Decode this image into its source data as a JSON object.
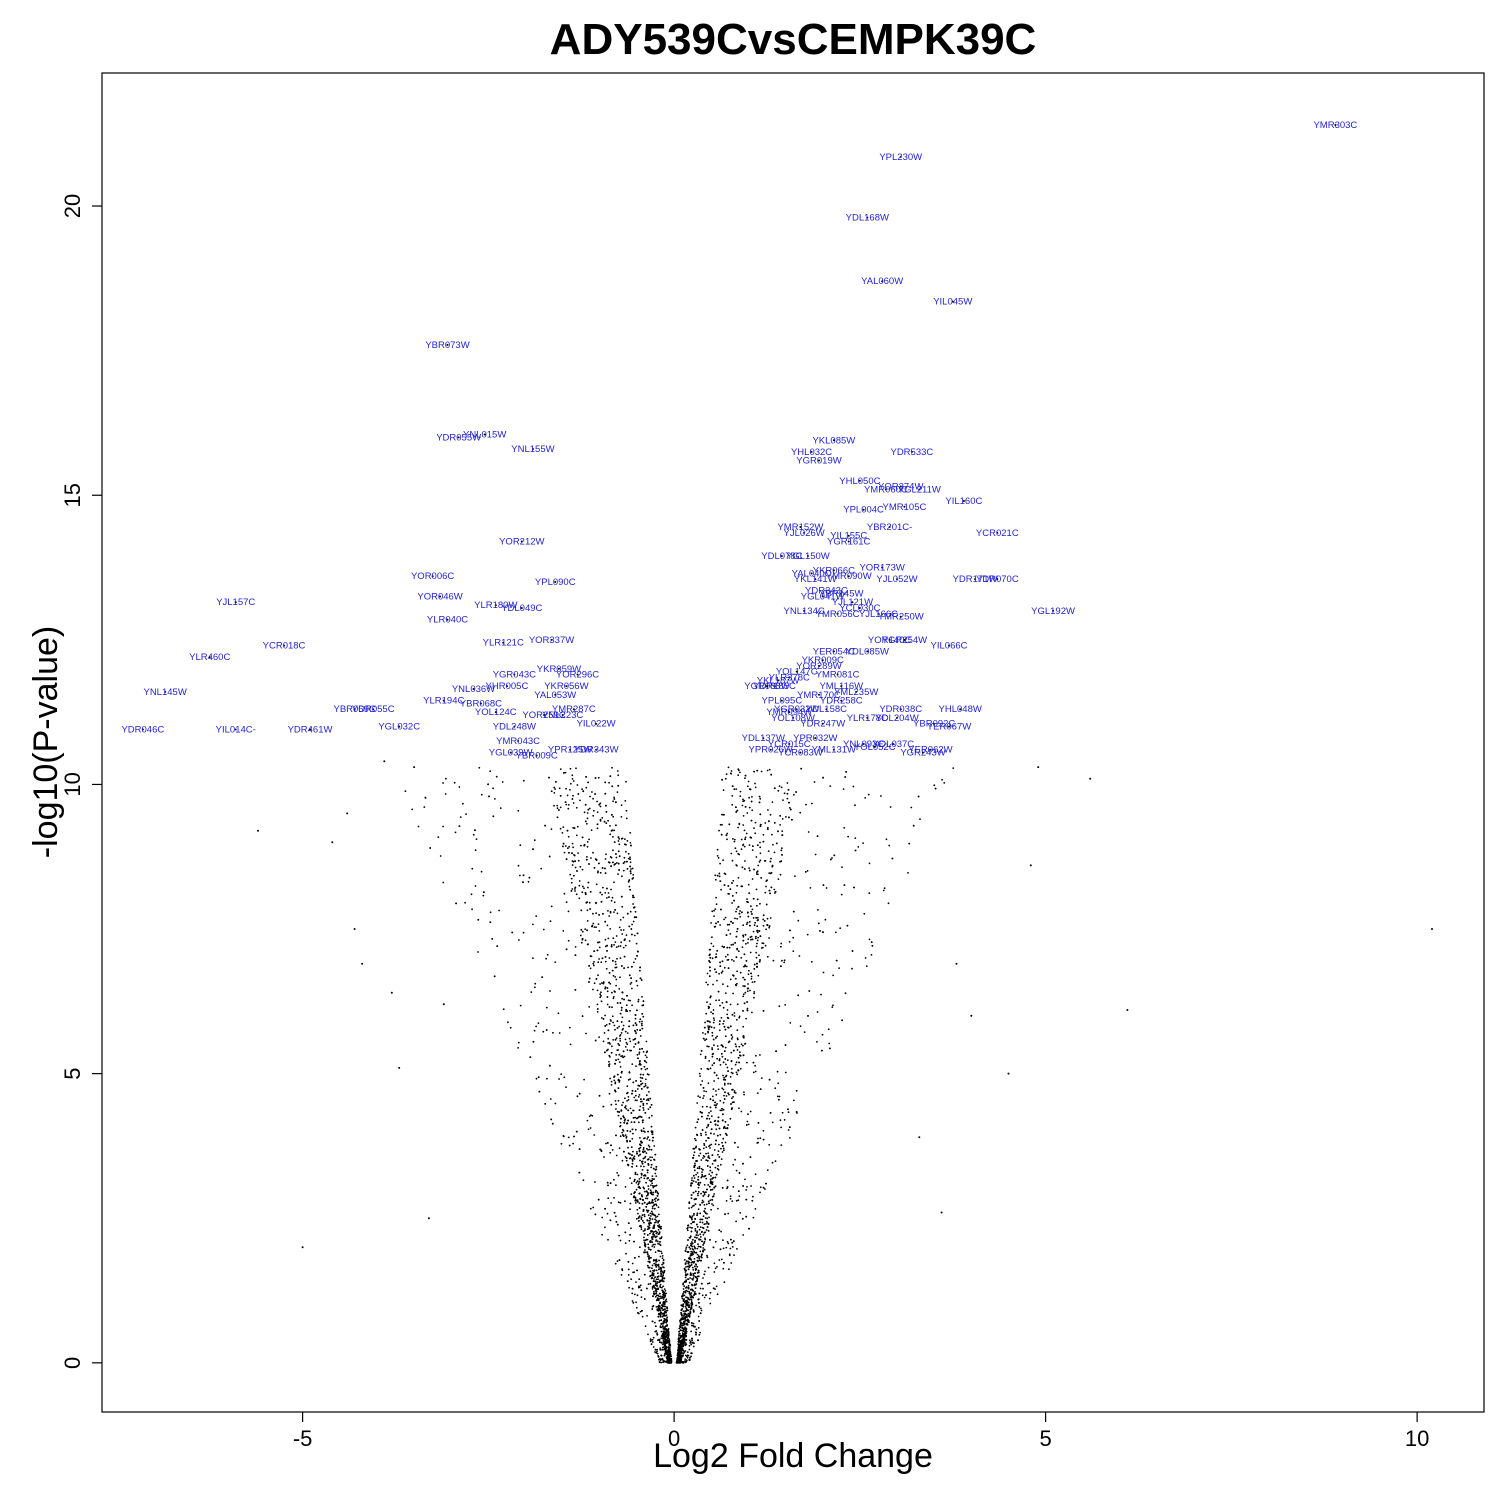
{
  "chart_data": {
    "type": "scatter",
    "title": "ADY539CvsCEMPK39C",
    "xlabel": "Log2 Fold Change",
    "ylabel": "-log10(P-value)",
    "xlim": [
      -7.7,
      10.9
    ],
    "ylim": [
      -0.85,
      22.3
    ],
    "x_ticks": [
      -5,
      0,
      5,
      10
    ],
    "y_ticks": [
      0,
      5,
      10,
      15,
      20
    ],
    "grid": false,
    "point_color": "#000000",
    "label_color": "#1f1fd0",
    "labeled_points": [
      {
        "gene": "YMR303C",
        "x": 8.9,
        "y": 21.4
      },
      {
        "gene": "YPL230W",
        "x": 3.05,
        "y": 20.85
      },
      {
        "gene": "YDL168W",
        "x": 2.6,
        "y": 19.8
      },
      {
        "gene": "YAL060W",
        "x": 2.8,
        "y": 18.7
      },
      {
        "gene": "YIL045W",
        "x": 3.75,
        "y": 18.35
      },
      {
        "gene": "YBR073W",
        "x": -3.05,
        "y": 17.6
      },
      {
        "gene": "YNL015W",
        "x": -2.55,
        "y": 16.05
      },
      {
        "gene": "YDR055W",
        "x": -2.9,
        "y": 16.0
      },
      {
        "gene": "YNL155W",
        "x": -1.9,
        "y": 15.8
      },
      {
        "gene": "YKL085W",
        "x": 2.15,
        "y": 15.95
      },
      {
        "gene": "YHL032C",
        "x": 1.85,
        "y": 15.75
      },
      {
        "gene": "YDR533C",
        "x": 3.2,
        "y": 15.75
      },
      {
        "gene": "YGR019W",
        "x": 1.95,
        "y": 15.6
      },
      {
        "gene": "YHL050C",
        "x": 2.5,
        "y": 15.25
      },
      {
        "gene": "YOR374W",
        "x": 3.05,
        "y": 15.15
      },
      {
        "gene": "YMR060C",
        "x": 2.85,
        "y": 15.1
      },
      {
        "gene": "YGL211W",
        "x": 3.3,
        "y": 15.1
      },
      {
        "gene": "YIL160C",
        "x": 3.9,
        "y": 14.9
      },
      {
        "gene": "YMR105C",
        "x": 3.1,
        "y": 14.8
      },
      {
        "gene": "YPL004C",
        "x": 2.55,
        "y": 14.75
      },
      {
        "gene": "YBR201C-",
        "x": 2.9,
        "y": 14.45
      },
      {
        "gene": "YCR021C",
        "x": 4.35,
        "y": 14.35
      },
      {
        "gene": "YMR152W",
        "x": 1.7,
        "y": 14.45
      },
      {
        "gene": "YJL026W",
        "x": 1.75,
        "y": 14.35
      },
      {
        "gene": "YIL155C",
        "x": 2.35,
        "y": 14.3
      },
      {
        "gene": "YGR161C",
        "x": 2.35,
        "y": 14.2
      },
      {
        "gene": "YOR212W",
        "x": -2.05,
        "y": 14.2
      },
      {
        "gene": "YDL078C",
        "x": 1.45,
        "y": 13.95
      },
      {
        "gene": "YGL150W",
        "x": 1.8,
        "y": 13.95
      },
      {
        "gene": "YOR173W",
        "x": 2.8,
        "y": 13.75
      },
      {
        "gene": "YKR066C",
        "x": 2.15,
        "y": 13.7
      },
      {
        "gene": "YAL040C",
        "x": 1.85,
        "y": 13.65
      },
      {
        "gene": "YMR090W",
        "x": 2.35,
        "y": 13.6
      },
      {
        "gene": "YJL052W",
        "x": 3.0,
        "y": 13.55
      },
      {
        "gene": "YDR171W",
        "x": 4.05,
        "y": 13.55
      },
      {
        "gene": "YDR070C",
        "x": 4.35,
        "y": 13.55
      },
      {
        "gene": "YKL141W",
        "x": 1.9,
        "y": 13.55
      },
      {
        "gene": "YOR006C",
        "x": -3.25,
        "y": 13.6
      },
      {
        "gene": "YPL090C",
        "x": -1.6,
        "y": 13.5
      },
      {
        "gene": "YDR343C",
        "x": 2.05,
        "y": 13.35
      },
      {
        "gene": "YBR145W",
        "x": 2.25,
        "y": 13.3
      },
      {
        "gene": "YGL041W",
        "x": 2.0,
        "y": 13.25
      },
      {
        "gene": "YOR046W",
        "x": -3.15,
        "y": 13.25
      },
      {
        "gene": "YJL157C",
        "x": -5.9,
        "y": 13.15
      },
      {
        "gene": "YLR180W",
        "x": -2.4,
        "y": 13.1
      },
      {
        "gene": "YDL049C",
        "x": -2.05,
        "y": 13.05
      },
      {
        "gene": "YJL121W",
        "x": 2.4,
        "y": 13.15
      },
      {
        "gene": "YCL030C",
        "x": 2.5,
        "y": 13.05
      },
      {
        "gene": "YJL166C",
        "x": 2.75,
        "y": 12.95
      },
      {
        "gene": "YNL134C",
        "x": 1.75,
        "y": 13.0
      },
      {
        "gene": "YMR056C",
        "x": 2.2,
        "y": 12.95
      },
      {
        "gene": "YMR250W",
        "x": 3.05,
        "y": 12.9
      },
      {
        "gene": "YGL192W",
        "x": 5.1,
        "y": 13.0
      },
      {
        "gene": "YLR040C",
        "x": -3.05,
        "y": 12.85
      },
      {
        "gene": "YOR337W",
        "x": -1.65,
        "y": 12.5
      },
      {
        "gene": "YLR121C",
        "x": -2.3,
        "y": 12.45
      },
      {
        "gene": "YCR018C",
        "x": -5.25,
        "y": 12.4
      },
      {
        "gene": "YOR140C",
        "x": 2.9,
        "y": 12.5
      },
      {
        "gene": "YGR254W",
        "x": 3.1,
        "y": 12.5
      },
      {
        "gene": "YIL066C",
        "x": 3.7,
        "y": 12.4
      },
      {
        "gene": "YER054C",
        "x": 2.15,
        "y": 12.3
      },
      {
        "gene": "YDL085W",
        "x": 2.6,
        "y": 12.3
      },
      {
        "gene": "YLR460C",
        "x": -6.25,
        "y": 12.2
      },
      {
        "gene": "YKR009C",
        "x": 2.0,
        "y": 12.15
      },
      {
        "gene": "YOR289W",
        "x": 1.95,
        "y": 12.05
      },
      {
        "gene": "YKR059W",
        "x": -1.55,
        "y": 12.0
      },
      {
        "gene": "YOR296C",
        "x": -1.3,
        "y": 11.9
      },
      {
        "gene": "YGR043C",
        "x": -2.15,
        "y": 11.9
      },
      {
        "gene": "YMR081C",
        "x": 2.2,
        "y": 11.9
      },
      {
        "gene": "YOL147C",
        "x": 1.65,
        "y": 11.95
      },
      {
        "gene": "YLR378C",
        "x": 1.55,
        "y": 11.85
      },
      {
        "gene": "YKL187W",
        "x": 1.4,
        "y": 11.8
      },
      {
        "gene": "YHR005C",
        "x": -2.25,
        "y": 11.7
      },
      {
        "gene": "YKR056W",
        "x": -1.45,
        "y": 11.7
      },
      {
        "gene": "YDR185C",
        "x": 1.35,
        "y": 11.7
      },
      {
        "gene": "YGR088W",
        "x": 1.25,
        "y": 11.7
      },
      {
        "gene": "YML116W",
        "x": 2.25,
        "y": 11.7
      },
      {
        "gene": "YNL036W",
        "x": -2.7,
        "y": 11.65
      },
      {
        "gene": "YNL145W",
        "x": -6.85,
        "y": 11.6
      },
      {
        "gene": "YAL053W",
        "x": -1.6,
        "y": 11.55
      },
      {
        "gene": "YMR170C",
        "x": 1.95,
        "y": 11.55
      },
      {
        "gene": "YML235W",
        "x": 2.45,
        "y": 11.6
      },
      {
        "gene": "YLR194C",
        "x": -3.1,
        "y": 11.45
      },
      {
        "gene": "YPL095C",
        "x": 1.45,
        "y": 11.45
      },
      {
        "gene": "YDR258C",
        "x": 2.25,
        "y": 11.45
      },
      {
        "gene": "YBR068C",
        "x": -2.6,
        "y": 11.4
      },
      {
        "gene": "YBR069C",
        "x": -4.3,
        "y": 11.3
      },
      {
        "gene": "YDR055C",
        "x": -4.05,
        "y": 11.3
      },
      {
        "gene": "YMR287C",
        "x": -1.35,
        "y": 11.3
      },
      {
        "gene": "YDR038C",
        "x": 3.05,
        "y": 11.3
      },
      {
        "gene": "YHL048W",
        "x": 3.85,
        "y": 11.3
      },
      {
        "gene": "YOL124C",
        "x": -2.4,
        "y": 11.25
      },
      {
        "gene": "YOR259C",
        "x": -1.75,
        "y": 11.2
      },
      {
        "gene": "YNL223C",
        "x": -1.5,
        "y": 11.2
      },
      {
        "gene": "YGR032W",
        "x": 1.65,
        "y": 11.3
      },
      {
        "gene": "YDL158C",
        "x": 2.05,
        "y": 11.3
      },
      {
        "gene": "YMR094W",
        "x": 1.55,
        "y": 11.25
      },
      {
        "gene": "YLR178C",
        "x": 2.6,
        "y": 11.15
      },
      {
        "gene": "YDL204W",
        "x": 3.0,
        "y": 11.15
      },
      {
        "gene": "YOL108W",
        "x": 1.6,
        "y": 11.15
      },
      {
        "gene": "YIL022W",
        "x": -1.05,
        "y": 11.05
      },
      {
        "gene": "YDR247W",
        "x": 2.0,
        "y": 11.05
      },
      {
        "gene": "YDL248W",
        "x": -2.15,
        "y": 11.0
      },
      {
        "gene": "YBR092C",
        "x": 3.5,
        "y": 11.05
      },
      {
        "gene": "YER067W",
        "x": 3.7,
        "y": 11.0
      },
      {
        "gene": "YDR046C",
        "x": -7.15,
        "y": 10.95
      },
      {
        "gene": "YIL014C-",
        "x": -5.9,
        "y": 10.95
      },
      {
        "gene": "YDR461W",
        "x": -4.9,
        "y": 10.95
      },
      {
        "gene": "YGL032C",
        "x": -3.7,
        "y": 11.0
      },
      {
        "gene": "YDL137W",
        "x": 1.2,
        "y": 10.8
      },
      {
        "gene": "YPR032W",
        "x": 1.9,
        "y": 10.8
      },
      {
        "gene": "YNL093C",
        "x": 2.55,
        "y": 10.7
      },
      {
        "gene": "YOL037C",
        "x": 2.95,
        "y": 10.7
      },
      {
        "gene": "YMR043C",
        "x": -2.1,
        "y": 10.75
      },
      {
        "gene": "YCR015C",
        "x": 1.55,
        "y": 10.7
      },
      {
        "gene": "YPR026W",
        "x": 1.3,
        "y": 10.6
      },
      {
        "gene": "YML131W",
        "x": 2.15,
        "y": 10.6
      },
      {
        "gene": "YOL052C",
        "x": 2.7,
        "y": 10.65
      },
      {
        "gene": "YER062W",
        "x": 3.45,
        "y": 10.6
      },
      {
        "gene": "YGR243W",
        "x": 3.35,
        "y": 10.55
      },
      {
        "gene": "YCR083W",
        "x": 1.7,
        "y": 10.55
      },
      {
        "gene": "YPR125W",
        "x": -1.4,
        "y": 10.6
      },
      {
        "gene": "YDR343W",
        "x": -1.05,
        "y": 10.6
      },
      {
        "gene": "YGL039W",
        "x": -2.2,
        "y": 10.55
      },
      {
        "gene": "YBR009C",
        "x": -1.85,
        "y": 10.5
      }
    ]
  }
}
